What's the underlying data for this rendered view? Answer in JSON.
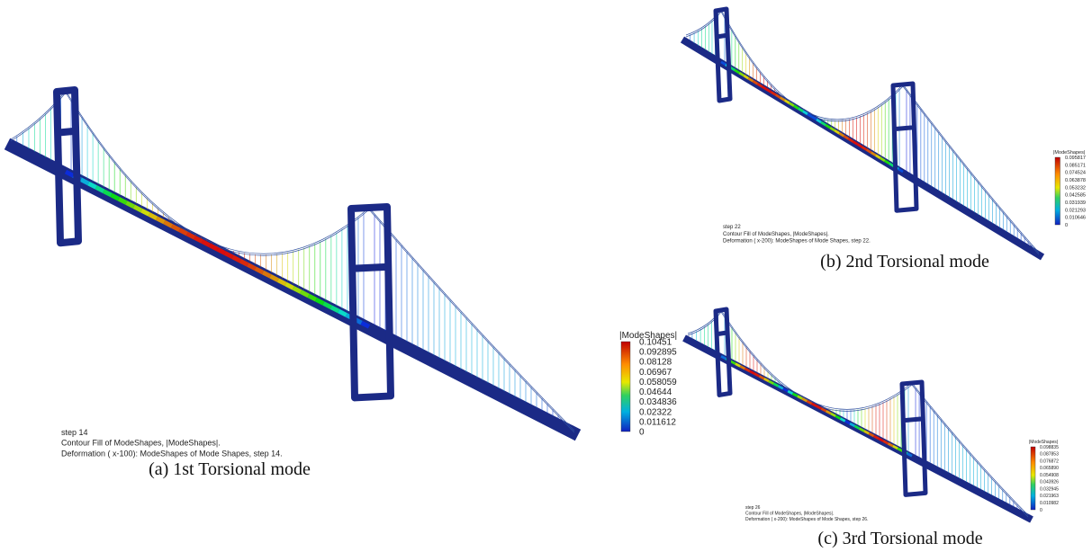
{
  "panels": [
    {
      "caption": "(a)  1st Torsional mode",
      "legend": {
        "title": "|ModeShapes|",
        "labels": [
          "0.10451",
          "0.092895",
          "0.08128",
          "0.06967",
          "0.058059",
          "0.04644",
          "0.034836",
          "0.02322",
          "0.011612",
          "0"
        ]
      },
      "info": [
        "step 14",
        "Contour Fill of ModeShapes, |ModeShapes|.",
        "Deformation ( x-100): ModeShapes of Mode Shapes, step 14."
      ]
    },
    {
      "caption": "(b) 2nd Torsional mode",
      "legend": {
        "title": "|ModeShapes|",
        "labels": [
          "0.095817",
          "0.085171",
          "0.074524",
          "0.063878",
          "0.053232",
          "0.042585",
          "0.031939",
          "0.021293",
          "0.010646",
          "0"
        ]
      },
      "info": [
        "step 22",
        "Contour Fill of ModeShapes, |ModeShapes|.",
        "Deformation ( x-200): ModeShapes of Mode Shapes, step 22."
      ]
    },
    {
      "caption": "(c) 3rd Torsional mode",
      "legend": {
        "title": "|ModeShapes|",
        "labels": [
          "0.098835",
          "0.087853",
          "0.076872",
          "0.065890",
          "0.054908",
          "0.043926",
          "0.032945",
          "0.021963",
          "0.010982",
          "0"
        ]
      },
      "info": [
        "step 26",
        "Contour Fill of ModeShapes, |ModeShapes|.",
        "Deformation ( x-200): ModeShapes of Mode Shapes, step 26."
      ]
    }
  ]
}
